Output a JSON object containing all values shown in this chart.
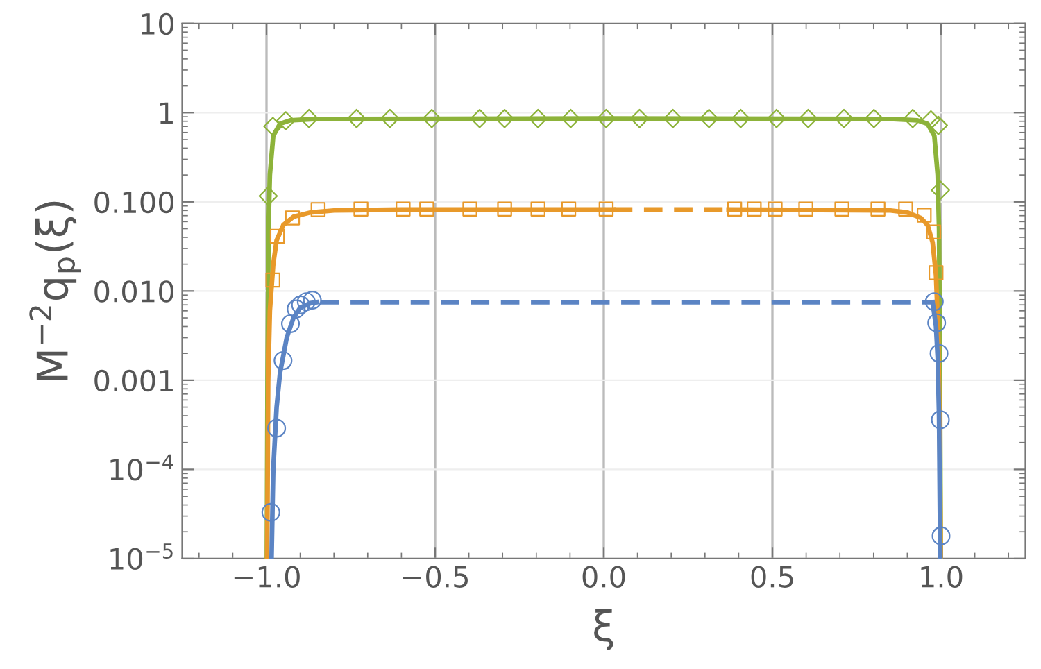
{
  "chart_data": {
    "type": "line",
    "xlabel": "ξ",
    "ylabel": "M$^{−2}$q$_{p}$(ξ)",
    "log": "y",
    "grid": true,
    "xlim": [
      -1.25,
      1.25
    ],
    "xticks": [
      {
        "value": -1,
        "label": "−1.0"
      },
      {
        "value": -0.5,
        "label": "−0.5"
      },
      {
        "value": 0,
        "label": "0.0"
      },
      {
        "value": 0.5,
        "label": "0.5"
      },
      {
        "value": 1,
        "label": "1.0"
      }
    ],
    "ylim": [
      1e-05,
      10
    ],
    "yticks": [
      {
        "value": 1e-05,
        "label": "10$^{−5}$"
      },
      {
        "value": 0.0001,
        "label": "10$^{−4}$"
      },
      {
        "value": 0.001,
        "label": "0.001"
      },
      {
        "value": 0.01,
        "label": "0.010"
      },
      {
        "value": 0.1,
        "label": "0.100"
      },
      {
        "value": 1,
        "label": "1"
      },
      {
        "value": 10,
        "label": "10"
      }
    ],
    "series": [
      {
        "type": "line",
        "color": "#8db33a",
        "line_style": "solid",
        "x": [
          -0.999,
          -0.997,
          -0.994,
          -0.99,
          -0.98,
          -0.96,
          -0.93,
          -0.85,
          0,
          0.85,
          0.93,
          0.96,
          0.98,
          0.99,
          0.994,
          0.997,
          0.999
        ],
        "values": [
          1e-05,
          0.001,
          0.05,
          0.2,
          0.55,
          0.75,
          0.82,
          0.85,
          0.86,
          0.85,
          0.82,
          0.75,
          0.55,
          0.2,
          0.05,
          0.001,
          1e-05
        ]
      },
      {
        "type": "line",
        "color": "#e8992a",
        "line_style": "solid",
        "x": [
          -0.998,
          -0.995,
          -0.99,
          -0.98,
          -0.97,
          -0.95,
          -0.92,
          -0.87,
          -0.8,
          -0.6,
          0.03
        ],
        "values": [
          1e-05,
          0.001,
          0.006,
          0.02,
          0.037,
          0.055,
          0.068,
          0.076,
          0.08,
          0.082,
          0.082
        ]
      },
      {
        "type": "line",
        "color": "#e8992a",
        "line_style": "dashed",
        "x": [
          0.03,
          0.37
        ],
        "values": [
          0.082,
          0.082
        ]
      },
      {
        "type": "line",
        "color": "#e8992a",
        "line_style": "solid",
        "x": [
          0.37,
          0.85,
          0.9,
          0.94,
          0.96,
          0.975,
          0.985,
          0.992,
          0.997,
          0.999
        ],
        "values": [
          0.082,
          0.08,
          0.076,
          0.066,
          0.055,
          0.035,
          0.015,
          0.003,
          0.0001,
          1e-05
        ]
      },
      {
        "type": "line",
        "color": "#5b84c4",
        "line_style": "solid",
        "x": [
          -0.985,
          -0.98,
          -0.97,
          -0.96,
          -0.94,
          -0.92,
          -0.9,
          -0.87,
          -0.85
        ],
        "values": [
          1e-05,
          0.0001,
          0.0005,
          0.0012,
          0.003,
          0.005,
          0.0065,
          0.0073,
          0.0075
        ]
      },
      {
        "type": "line",
        "color": "#5b84c4",
        "line_style": "dashed",
        "x": [
          -0.84,
          0.975
        ],
        "values": [
          0.0075,
          0.0075
        ]
      },
      {
        "type": "line",
        "color": "#5b84c4",
        "line_style": "solid",
        "x": [
          0.975,
          0.985,
          0.99,
          0.994,
          0.997,
          0.998
        ],
        "values": [
          0.0075,
          0.004,
          0.0018,
          0.0004,
          2e-05,
          1e-05
        ]
      },
      {
        "type": "scatter",
        "color": "#8db33a",
        "marker": "diamond",
        "x": [
          -0.995,
          -0.981,
          -0.943,
          -0.874,
          -0.733,
          -0.634,
          -0.51,
          -0.368,
          -0.294,
          -0.195,
          -0.098,
          0.007,
          0.106,
          0.205,
          0.312,
          0.406,
          0.512,
          0.606,
          0.712,
          0.801,
          0.916,
          0.97,
          0.992,
          0.998
        ],
        "values": [
          0.116,
          0.7,
          0.81,
          0.86,
          0.86,
          0.86,
          0.86,
          0.86,
          0.86,
          0.86,
          0.86,
          0.86,
          0.86,
          0.86,
          0.86,
          0.86,
          0.86,
          0.86,
          0.86,
          0.86,
          0.86,
          0.83,
          0.72,
          0.135
        ]
      },
      {
        "type": "scatter",
        "color": "#e8992a",
        "marker": "square",
        "x": [
          -0.981,
          -0.968,
          -0.923,
          -0.847,
          -0.72,
          -0.595,
          -0.525,
          -0.397,
          -0.294,
          -0.195,
          -0.104,
          0.007,
          0.388,
          0.446,
          0.508,
          0.599,
          0.706,
          0.813,
          0.895,
          0.95,
          0.978,
          0.985
        ],
        "values": [
          0.0133,
          0.041,
          0.066,
          0.082,
          0.083,
          0.083,
          0.083,
          0.083,
          0.083,
          0.083,
          0.083,
          0.083,
          0.083,
          0.083,
          0.083,
          0.083,
          0.083,
          0.083,
          0.083,
          0.071,
          0.046,
          0.016
        ]
      },
      {
        "type": "scatter",
        "color": "#5b84c4",
        "marker": "circle",
        "x": [
          -0.987,
          -0.97,
          -0.951,
          -0.929,
          -0.912,
          -0.899,
          -0.882,
          -0.864,
          0.98,
          0.987,
          0.994,
          0.998,
          1.0
        ],
        "values": [
          3.3e-05,
          0.00029,
          0.00166,
          0.0043,
          0.0063,
          0.007,
          0.0076,
          0.0079,
          0.0076,
          0.0044,
          0.002,
          0.00036,
          1.8e-05
        ]
      }
    ]
  }
}
